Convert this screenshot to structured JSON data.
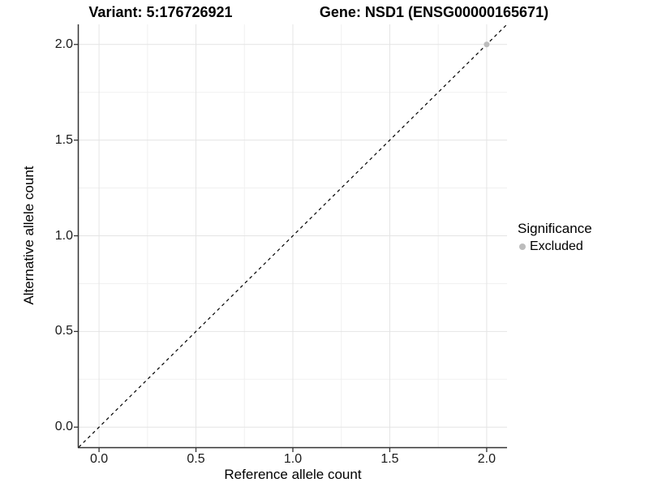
{
  "title": {
    "variant": "Variant: 5:176726921",
    "gene": "Gene: NSD1 (ENSG00000165671)"
  },
  "axes": {
    "x_label": "Reference allele count",
    "y_label": "Alternative allele count"
  },
  "legend": {
    "title": "Significance",
    "items": [
      {
        "label": "Excluded",
        "color": "#bcbcbc"
      }
    ]
  },
  "chart_data": {
    "type": "scatter",
    "title": "Variant: 5:176726921    Gene: NSD1 (ENSG00000165671)",
    "xlabel": "Reference allele count",
    "ylabel": "Alternative allele count",
    "xlim": [
      -0.105,
      2.105
    ],
    "ylim": [
      -0.105,
      2.105
    ],
    "x_ticks": [
      0,
      0.5,
      1,
      1.5,
      2
    ],
    "y_ticks": [
      0,
      0.5,
      1,
      1.5,
      2
    ],
    "x_tick_labels": [
      "0.0",
      "0.5",
      "1.0",
      "1.5",
      "2.0"
    ],
    "y_tick_labels": [
      "0.0",
      "0.5",
      "1.0",
      "1.5",
      "2.0"
    ],
    "minor_ticks": [
      0.25,
      0.75,
      1.25,
      1.75
    ],
    "grid": true,
    "legend_position": "right",
    "series": [
      {
        "name": "Excluded",
        "color": "#bcbcbc",
        "points": [
          {
            "x": 2.0,
            "y": 2.0
          }
        ]
      }
    ],
    "reference_line": {
      "type": "identity",
      "slope": 1,
      "intercept": 0,
      "style": "dashed",
      "color": "#000000"
    },
    "style": {
      "panel_background": "#ffffff",
      "grid_major_color": "#e4e4e4",
      "grid_minor_color": "#f0f0f0",
      "axis_line_color": "#333333",
      "tick_color": "#333333",
      "point_radius": 3.5
    }
  }
}
